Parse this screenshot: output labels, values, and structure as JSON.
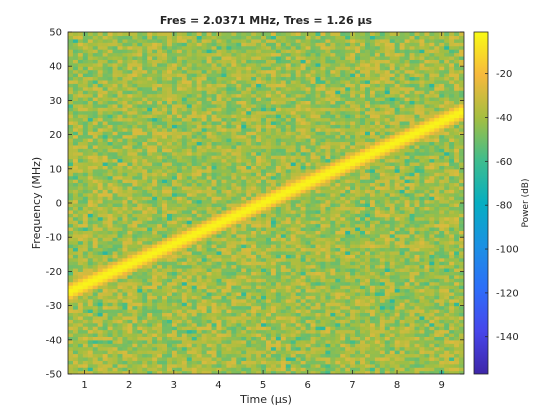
{
  "chart_data": {
    "type": "heatmap",
    "title": "Fres = 2.0371 MHz, Tres = 1.26 µs",
    "xlabel": "Time (µs)",
    "ylabel": "Frequency (MHz)",
    "colorbar_label": "Power (dB)",
    "xlim": [
      0.63,
      9.5
    ],
    "ylim": [
      -50,
      50
    ],
    "clim": [
      -157,
      -1
    ],
    "x_ticks": [
      1,
      2,
      3,
      4,
      5,
      6,
      7,
      8,
      9
    ],
    "y_ticks": [
      -50,
      -40,
      -30,
      -20,
      -10,
      0,
      10,
      20,
      30,
      40,
      50
    ],
    "colorbar_ticks": [
      -20,
      -40,
      -60,
      -80,
      -100,
      -120,
      -140
    ],
    "colormap": "parula",
    "background_level_db": [
      -60,
      -30
    ],
    "chirp": {
      "description_values": "linear chirp peak power ridge",
      "start": {
        "time_us": 0.63,
        "freq_mhz": -26
      },
      "end": {
        "time_us": 9.5,
        "freq_mhz": 27
      },
      "peak_db": -3
    },
    "grid": false
  }
}
